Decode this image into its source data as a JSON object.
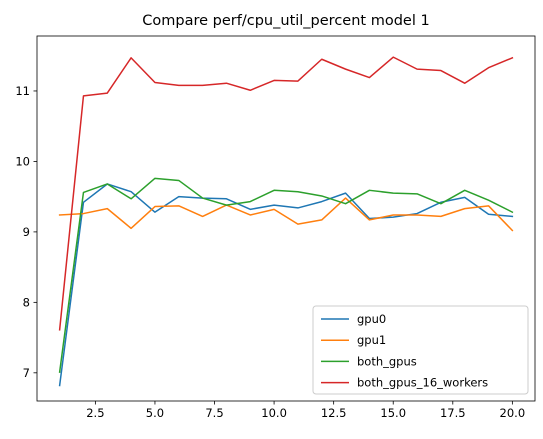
{
  "chart_data": {
    "type": "line",
    "title": "Compare perf/cpu_util_percent model 1",
    "xlabel": "",
    "ylabel": "",
    "xlim": [
      0.05,
      20.95
    ],
    "ylim": [
      6.6,
      11.78
    ],
    "xticks": [
      2.5,
      5.0,
      7.5,
      10.0,
      12.5,
      15.0,
      17.5,
      20.0
    ],
    "xtick_labels": [
      "2.5",
      "5.0",
      "7.5",
      "10.0",
      "12.5",
      "15.0",
      "17.5",
      "20.0"
    ],
    "yticks": [
      7,
      8,
      9,
      10,
      11
    ],
    "ytick_labels": [
      "7",
      "8",
      "9",
      "10",
      "11"
    ],
    "grid": false,
    "legend_position": "lower-right",
    "x": [
      1,
      2,
      3,
      4,
      5,
      6,
      7,
      8,
      9,
      10,
      11,
      12,
      13,
      14,
      15,
      16,
      17,
      18,
      19,
      20
    ],
    "series": [
      {
        "name": "gpu0",
        "color": "#1f77b4",
        "values": [
          6.82,
          9.42,
          9.68,
          9.57,
          9.28,
          9.5,
          9.48,
          9.47,
          9.32,
          9.38,
          9.34,
          9.43,
          9.55,
          9.19,
          9.21,
          9.26,
          9.42,
          9.49,
          9.25,
          9.22
        ]
      },
      {
        "name": "gpu1",
        "color": "#ff7f0e",
        "values": [
          9.24,
          9.26,
          9.33,
          9.05,
          9.36,
          9.37,
          9.22,
          9.38,
          9.24,
          9.32,
          9.11,
          9.17,
          9.48,
          9.17,
          9.24,
          9.24,
          9.22,
          9.33,
          9.37,
          9.02
        ]
      },
      {
        "name": "both_gpus",
        "color": "#2ca02c",
        "values": [
          7.01,
          9.56,
          9.68,
          9.47,
          9.76,
          9.73,
          9.48,
          9.38,
          9.43,
          9.59,
          9.57,
          9.51,
          9.4,
          9.59,
          9.55,
          9.54,
          9.4,
          9.59,
          9.45,
          9.28
        ]
      },
      {
        "name": "both_gpus_16_workers",
        "color": "#d62728",
        "values": [
          7.61,
          10.93,
          10.97,
          11.47,
          11.12,
          11.08,
          11.08,
          11.11,
          11.01,
          11.15,
          11.14,
          11.45,
          11.31,
          11.19,
          11.48,
          11.31,
          11.29,
          11.11,
          11.33,
          11.47
        ]
      }
    ]
  }
}
